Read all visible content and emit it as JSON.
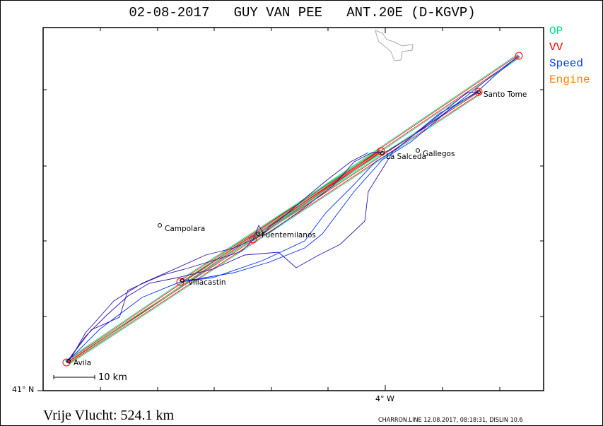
{
  "title": "02-08-2017   GUY VAN PEE   ANT.20E (D-KGVP)",
  "legend": [
    {
      "label": "OP",
      "color": "#00e080"
    },
    {
      "label": "VV",
      "color": "#ff0000"
    },
    {
      "label": "Speed",
      "color": "#0040ff"
    },
    {
      "label": "Engine",
      "color": "#ff8000"
    }
  ],
  "towns": [
    {
      "name": "Avila"
    },
    {
      "name": "Villacastin"
    },
    {
      "name": "Fuentemilanos"
    },
    {
      "name": "Campolara"
    },
    {
      "name": "La Salceda"
    },
    {
      "name": "Gallegos"
    },
    {
      "name": "Santo Tome"
    }
  ],
  "axes": {
    "lat_label": "41° N",
    "lon_label": "4° W"
  },
  "scale_bar": "10 km",
  "distance": "Vrije Vlucht:  524.1 km",
  "stamp": "CHARRON.LINE 12.08.2017, 08:18:31, DISLIN 10.6"
}
